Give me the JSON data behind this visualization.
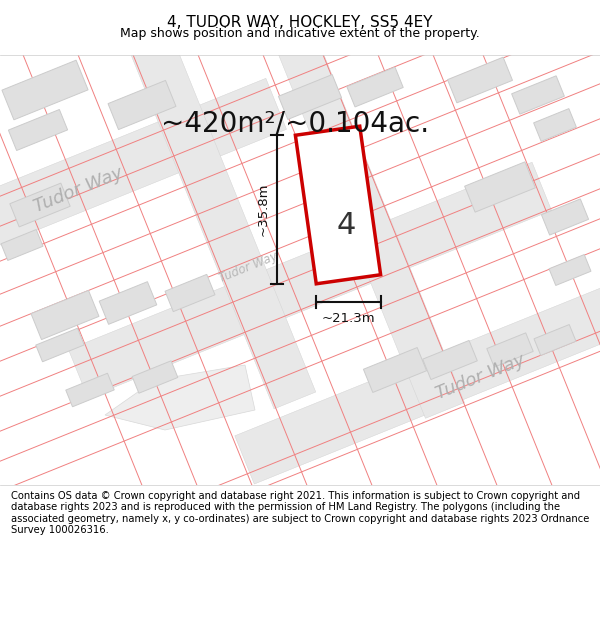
{
  "title": "4, TUDOR WAY, HOCKLEY, SS5 4EY",
  "subtitle": "Map shows position and indicative extent of the property.",
  "area_label": "~420m²/~0.104ac.",
  "property_number": "4",
  "width_label": "~21.3m",
  "height_label": "~35.8m",
  "footer": "Contains OS data © Crown copyright and database right 2021. This information is subject to Crown copyright and database rights 2023 and is reproduced with the permission of HM Land Registry. The polygons (including the associated geometry, namely x, y co-ordinates) are subject to Crown copyright and database rights 2023 Ordnance Survey 100026316.",
  "bg_color": "#ffffff",
  "map_bg": "#ffffff",
  "building_fill": "#e0e0e0",
  "building_stroke": "#cccccc",
  "road_fill": "#e8e8e8",
  "pink_color": "#f08080",
  "property_fill": "#ffffff",
  "property_stroke": "#cc0000",
  "street_color": "#b0b0b0",
  "dim_color": "#111111",
  "title_fontsize": 11,
  "subtitle_fontsize": 9,
  "area_fontsize": 20,
  "number_fontsize": 22,
  "dim_fontsize": 9.5,
  "footer_fontsize": 7.2,
  "street_fontsize": 13
}
